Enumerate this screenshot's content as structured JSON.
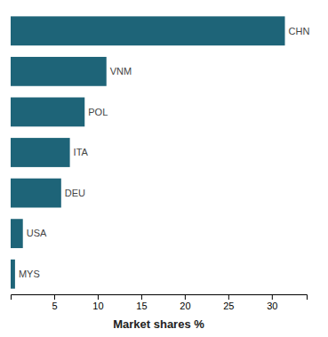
{
  "chart_data": {
    "type": "bar",
    "orientation": "horizontal",
    "categories": [
      "CHN",
      "VNM",
      "POL",
      "ITA",
      "DEU",
      "USA",
      "MYS"
    ],
    "values": [
      31.5,
      11.0,
      8.5,
      6.8,
      5.8,
      1.4,
      0.5
    ],
    "color": "#1e6478",
    "xlabel": "Market shares %",
    "xlim": [
      0,
      34
    ],
    "xticks": [
      5,
      10,
      15,
      20,
      25,
      30
    ],
    "tick_labels": "x",
    "grid": false
  }
}
